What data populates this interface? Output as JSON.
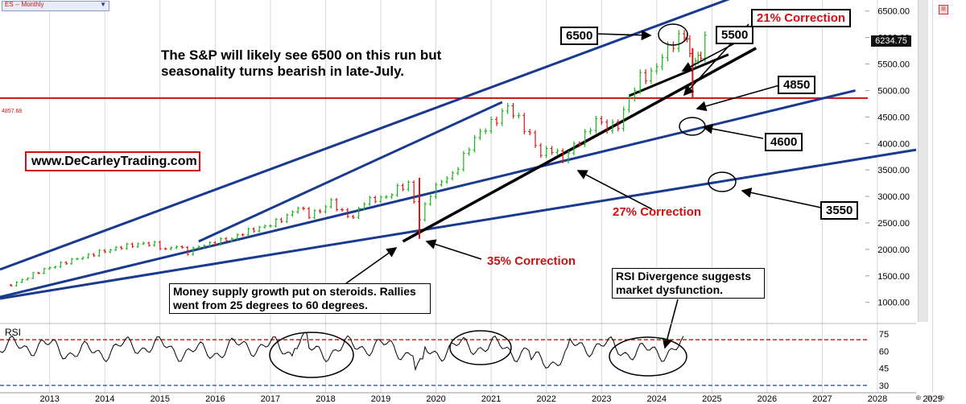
{
  "symbol": {
    "label": "ES -- Monthly",
    "dropdown_icon": "chevron-down-icon"
  },
  "chart_data": {
    "type": "candlestick",
    "x_labels": [
      "2013",
      "2014",
      "2015",
      "2016",
      "2017",
      "2018",
      "2019",
      "2020",
      "2021",
      "2022",
      "2023",
      "2024",
      "2025",
      "2026",
      "2027",
      "2028",
      "2029"
    ],
    "y_ticks": [
      1000,
      1500,
      2000,
      2500,
      3000,
      3500,
      4000,
      4500,
      5000,
      5500,
      6000,
      6500
    ],
    "y_tick_labels": [
      "1000.00",
      "1500.00",
      "2000.00",
      "2500.00",
      "3000.00",
      "3500.00",
      "4000.00",
      "4500.00",
      "5000.00",
      "5500.00",
      "6000.00",
      "6500.00"
    ],
    "last_price": "6234.75",
    "horizontal_line": {
      "value": 4857.68,
      "label": "4857.68",
      "color": "#cc1111"
    },
    "ylim": [
      600,
      6800
    ],
    "colors": {
      "up": "#1bb31b",
      "down": "#dd1111",
      "channel": "#1a3a8f",
      "trend": "#000000",
      "support": "#cc1111",
      "rsi": "#000000",
      "rsi_level": "#dd1111",
      "rsi_low": "#3366cc"
    },
    "closes": [
      [
        2012.8,
        1330
      ],
      [
        2013.0,
        1420
      ],
      [
        2013.2,
        1530
      ],
      [
        2013.4,
        1620
      ],
      [
        2013.6,
        1690
      ],
      [
        2013.8,
        1760
      ],
      [
        2014.0,
        1830
      ],
      [
        2014.2,
        1880
      ],
      [
        2014.4,
        1950
      ],
      [
        2014.6,
        1990
      ],
      [
        2014.8,
        2050
      ],
      [
        2015.0,
        2080
      ],
      [
        2015.2,
        2110
      ],
      [
        2015.4,
        2100
      ],
      [
        2015.6,
        1990
      ],
      [
        2015.8,
        2070
      ],
      [
        2016.0,
        1940
      ],
      [
        2016.2,
        2060
      ],
      [
        2016.4,
        2100
      ],
      [
        2016.6,
        2170
      ],
      [
        2016.8,
        2200
      ],
      [
        2017.0,
        2310
      ],
      [
        2017.2,
        2380
      ],
      [
        2017.4,
        2430
      ],
      [
        2017.6,
        2520
      ],
      [
        2017.8,
        2620
      ],
      [
        2018.0,
        2800
      ],
      [
        2018.2,
        2650
      ],
      [
        2018.4,
        2730
      ],
      [
        2018.6,
        2900
      ],
      [
        2018.8,
        2700
      ],
      [
        2019.0,
        2600
      ],
      [
        2019.2,
        2900
      ],
      [
        2019.4,
        2950
      ],
      [
        2019.6,
        2980
      ],
      [
        2019.8,
        3150
      ],
      [
        2020.0,
        3230
      ],
      [
        2020.2,
        2580
      ],
      [
        2020.4,
        3050
      ],
      [
        2020.6,
        3300
      ],
      [
        2020.8,
        3400
      ],
      [
        2021.0,
        3750
      ],
      [
        2021.2,
        4100
      ],
      [
        2021.4,
        4300
      ],
      [
        2021.6,
        4450
      ],
      [
        2021.8,
        4700
      ],
      [
        2022.0,
        4450
      ],
      [
        2022.2,
        4150
      ],
      [
        2022.4,
        3800
      ],
      [
        2022.6,
        3900
      ],
      [
        2022.8,
        3700
      ],
      [
        2023.0,
        3950
      ],
      [
        2023.2,
        4150
      ],
      [
        2023.4,
        4450
      ],
      [
        2023.6,
        4300
      ],
      [
        2023.8,
        4350
      ],
      [
        2024.0,
        4850
      ],
      [
        2024.2,
        5250
      ],
      [
        2024.4,
        5300
      ],
      [
        2024.6,
        5650
      ],
      [
        2024.8,
        5900
      ],
      [
        2025.0,
        6050
      ],
      [
        2025.1,
        5700
      ],
      [
        2025.2,
        5500
      ],
      [
        2025.3,
        5700
      ],
      [
        2025.45,
        6234
      ]
    ],
    "rsi": {
      "label": "RSI",
      "levels": [
        70,
        30
      ],
      "tick_labels": [
        "75",
        "60",
        "45",
        "30"
      ],
      "ticks": [
        75,
        60,
        45,
        30
      ]
    }
  },
  "annotations": {
    "headline": "The S&P will likely see 6500 on this run but seasonality turns bearish in late-July.",
    "website": "www.DeCarleyTrading.com",
    "money_supply": "Money supply growth put on steroids. Rallies went from 25 degrees to 60 degrees.",
    "rsi_note": "RSI Divergence suggests market dysfunction.",
    "targets": [
      "6500",
      "5500",
      "4850",
      "4600",
      "3550"
    ],
    "corrections": [
      "21% Correction",
      "27% Correction",
      "35% Correction"
    ]
  }
}
